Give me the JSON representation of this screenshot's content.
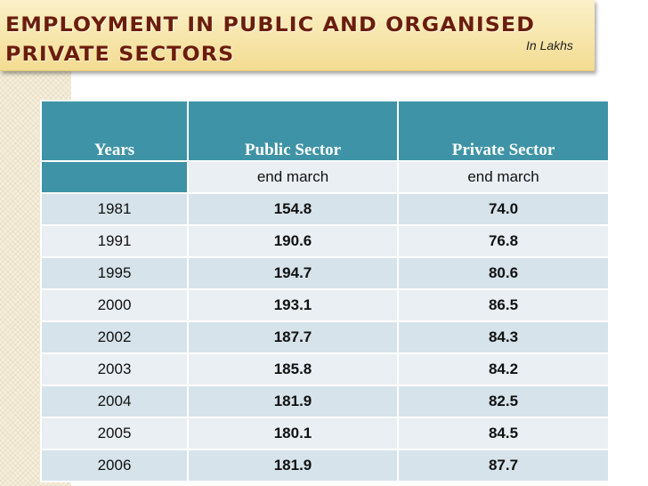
{
  "title": {
    "line1": "Employment in Public and Organised",
    "line2": "Private Sectors"
  },
  "unit_note": "In Lakhs",
  "table": {
    "headers": [
      "Years",
      "Public Sector",
      "Private Sector"
    ],
    "subheader": [
      "",
      "end march",
      "end march"
    ],
    "rows": [
      {
        "year": "1981",
        "public": "154.8",
        "private": "74.0"
      },
      {
        "year": "1991",
        "public": "190.6",
        "private": "76.8"
      },
      {
        "year": "1995",
        "public": "194.7",
        "private": "80.6"
      },
      {
        "year": "2000",
        "public": "193.1",
        "private": "86.5"
      },
      {
        "year": "2002",
        "public": "187.7",
        "private": "84.3"
      },
      {
        "year": "2003",
        "public": "185.8",
        "private": "84.2"
      },
      {
        "year": "2004",
        "public": "181.9",
        "private": "82.5"
      },
      {
        "year": "2005",
        "public": "180.1",
        "private": "84.5"
      },
      {
        "year": "2006",
        "public": "181.9",
        "private": "87.7"
      }
    ]
  },
  "colors": {
    "header_bg": "#3f93a6",
    "row_dark": "#d6e3ea",
    "row_light": "#eaeff3",
    "title_text": "#6b1d0c",
    "title_bg": "#f3dc92"
  }
}
